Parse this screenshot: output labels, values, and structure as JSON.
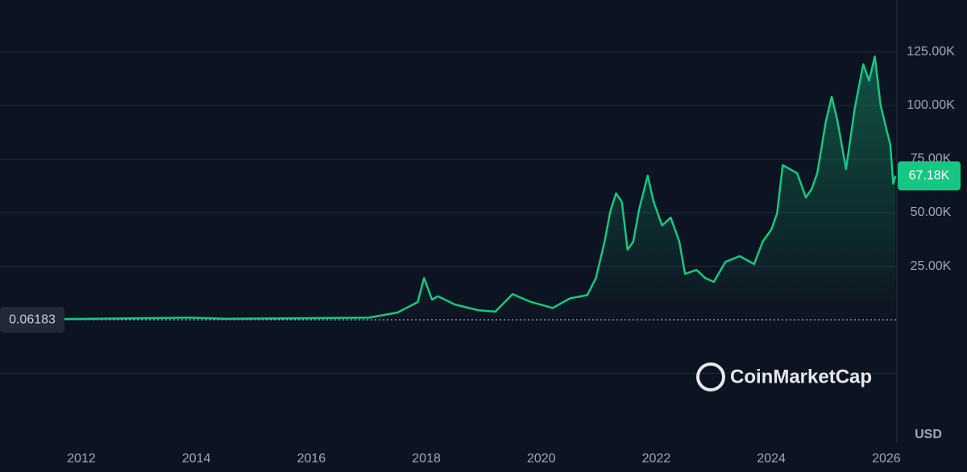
{
  "chart_data": {
    "type": "line",
    "x": [
      2010.6,
      2013.9,
      2014.5,
      2017.0,
      2017.5,
      2017.85,
      2017.96,
      2018.1,
      2018.2,
      2018.5,
      2018.9,
      2019.2,
      2019.5,
      2019.8,
      2020.2,
      2020.5,
      2020.8,
      2020.95,
      2021.1,
      2021.2,
      2021.3,
      2021.4,
      2021.5,
      2021.6,
      2021.7,
      2021.85,
      2021.95,
      2022.1,
      2022.25,
      2022.4,
      2022.5,
      2022.7,
      2022.85,
      2023.0,
      2023.2,
      2023.45,
      2023.7,
      2023.85,
      2024.0,
      2024.1,
      2024.2,
      2024.45,
      2024.6,
      2024.7,
      2024.8,
      2024.95,
      2025.05,
      2025.15,
      2025.3,
      2025.45,
      2025.6,
      2025.7,
      2025.8,
      2025.9,
      2026.0,
      2026.07,
      2026.12,
      2026.16
    ],
    "values": [
      0.06183,
      1000,
      500,
      1000,
      3400,
      8300,
      19500,
      9400,
      11000,
      7100,
      4500,
      3800,
      12000,
      8500,
      5500,
      10000,
      11500,
      19500,
      36500,
      50700,
      59000,
      55000,
      32700,
      36500,
      51500,
      67300,
      55300,
      44000,
      47700,
      36500,
      21400,
      23300,
      19500,
      17700,
      27000,
      29700,
      26000,
      36500,
      42100,
      49600,
      72200,
      68400,
      57100,
      60900,
      68400,
      92900,
      104100,
      92900,
      70300,
      98500,
      119200,
      111600,
      122900,
      100400,
      89100,
      81600,
      63500,
      67180
    ],
    "color": "#16c784",
    "xlim": [
      2010.585,
      2026.17
    ],
    "xticks": [
      2012,
      2014,
      2016,
      2018,
      2020,
      2022,
      2024,
      2026
    ],
    "ylim": [
      -57500,
      149250
    ],
    "yticks": [
      {
        "value": -25000,
        "label": null
      },
      {
        "value": 25000,
        "label": "25.00K"
      },
      {
        "value": 50000,
        "label": "50.00K"
      },
      {
        "value": 75000,
        "label": "75.00K"
      },
      {
        "value": 100000,
        "label": "100.00K"
      },
      {
        "value": 125000,
        "label": "125.00K"
      }
    ],
    "grid": true,
    "start_label": {
      "value": 0.06183,
      "label": "0.06183"
    },
    "last_label": {
      "value": 67180,
      "label": "67.18K"
    },
    "currency": "USD"
  },
  "watermark": "CoinMarketCap"
}
